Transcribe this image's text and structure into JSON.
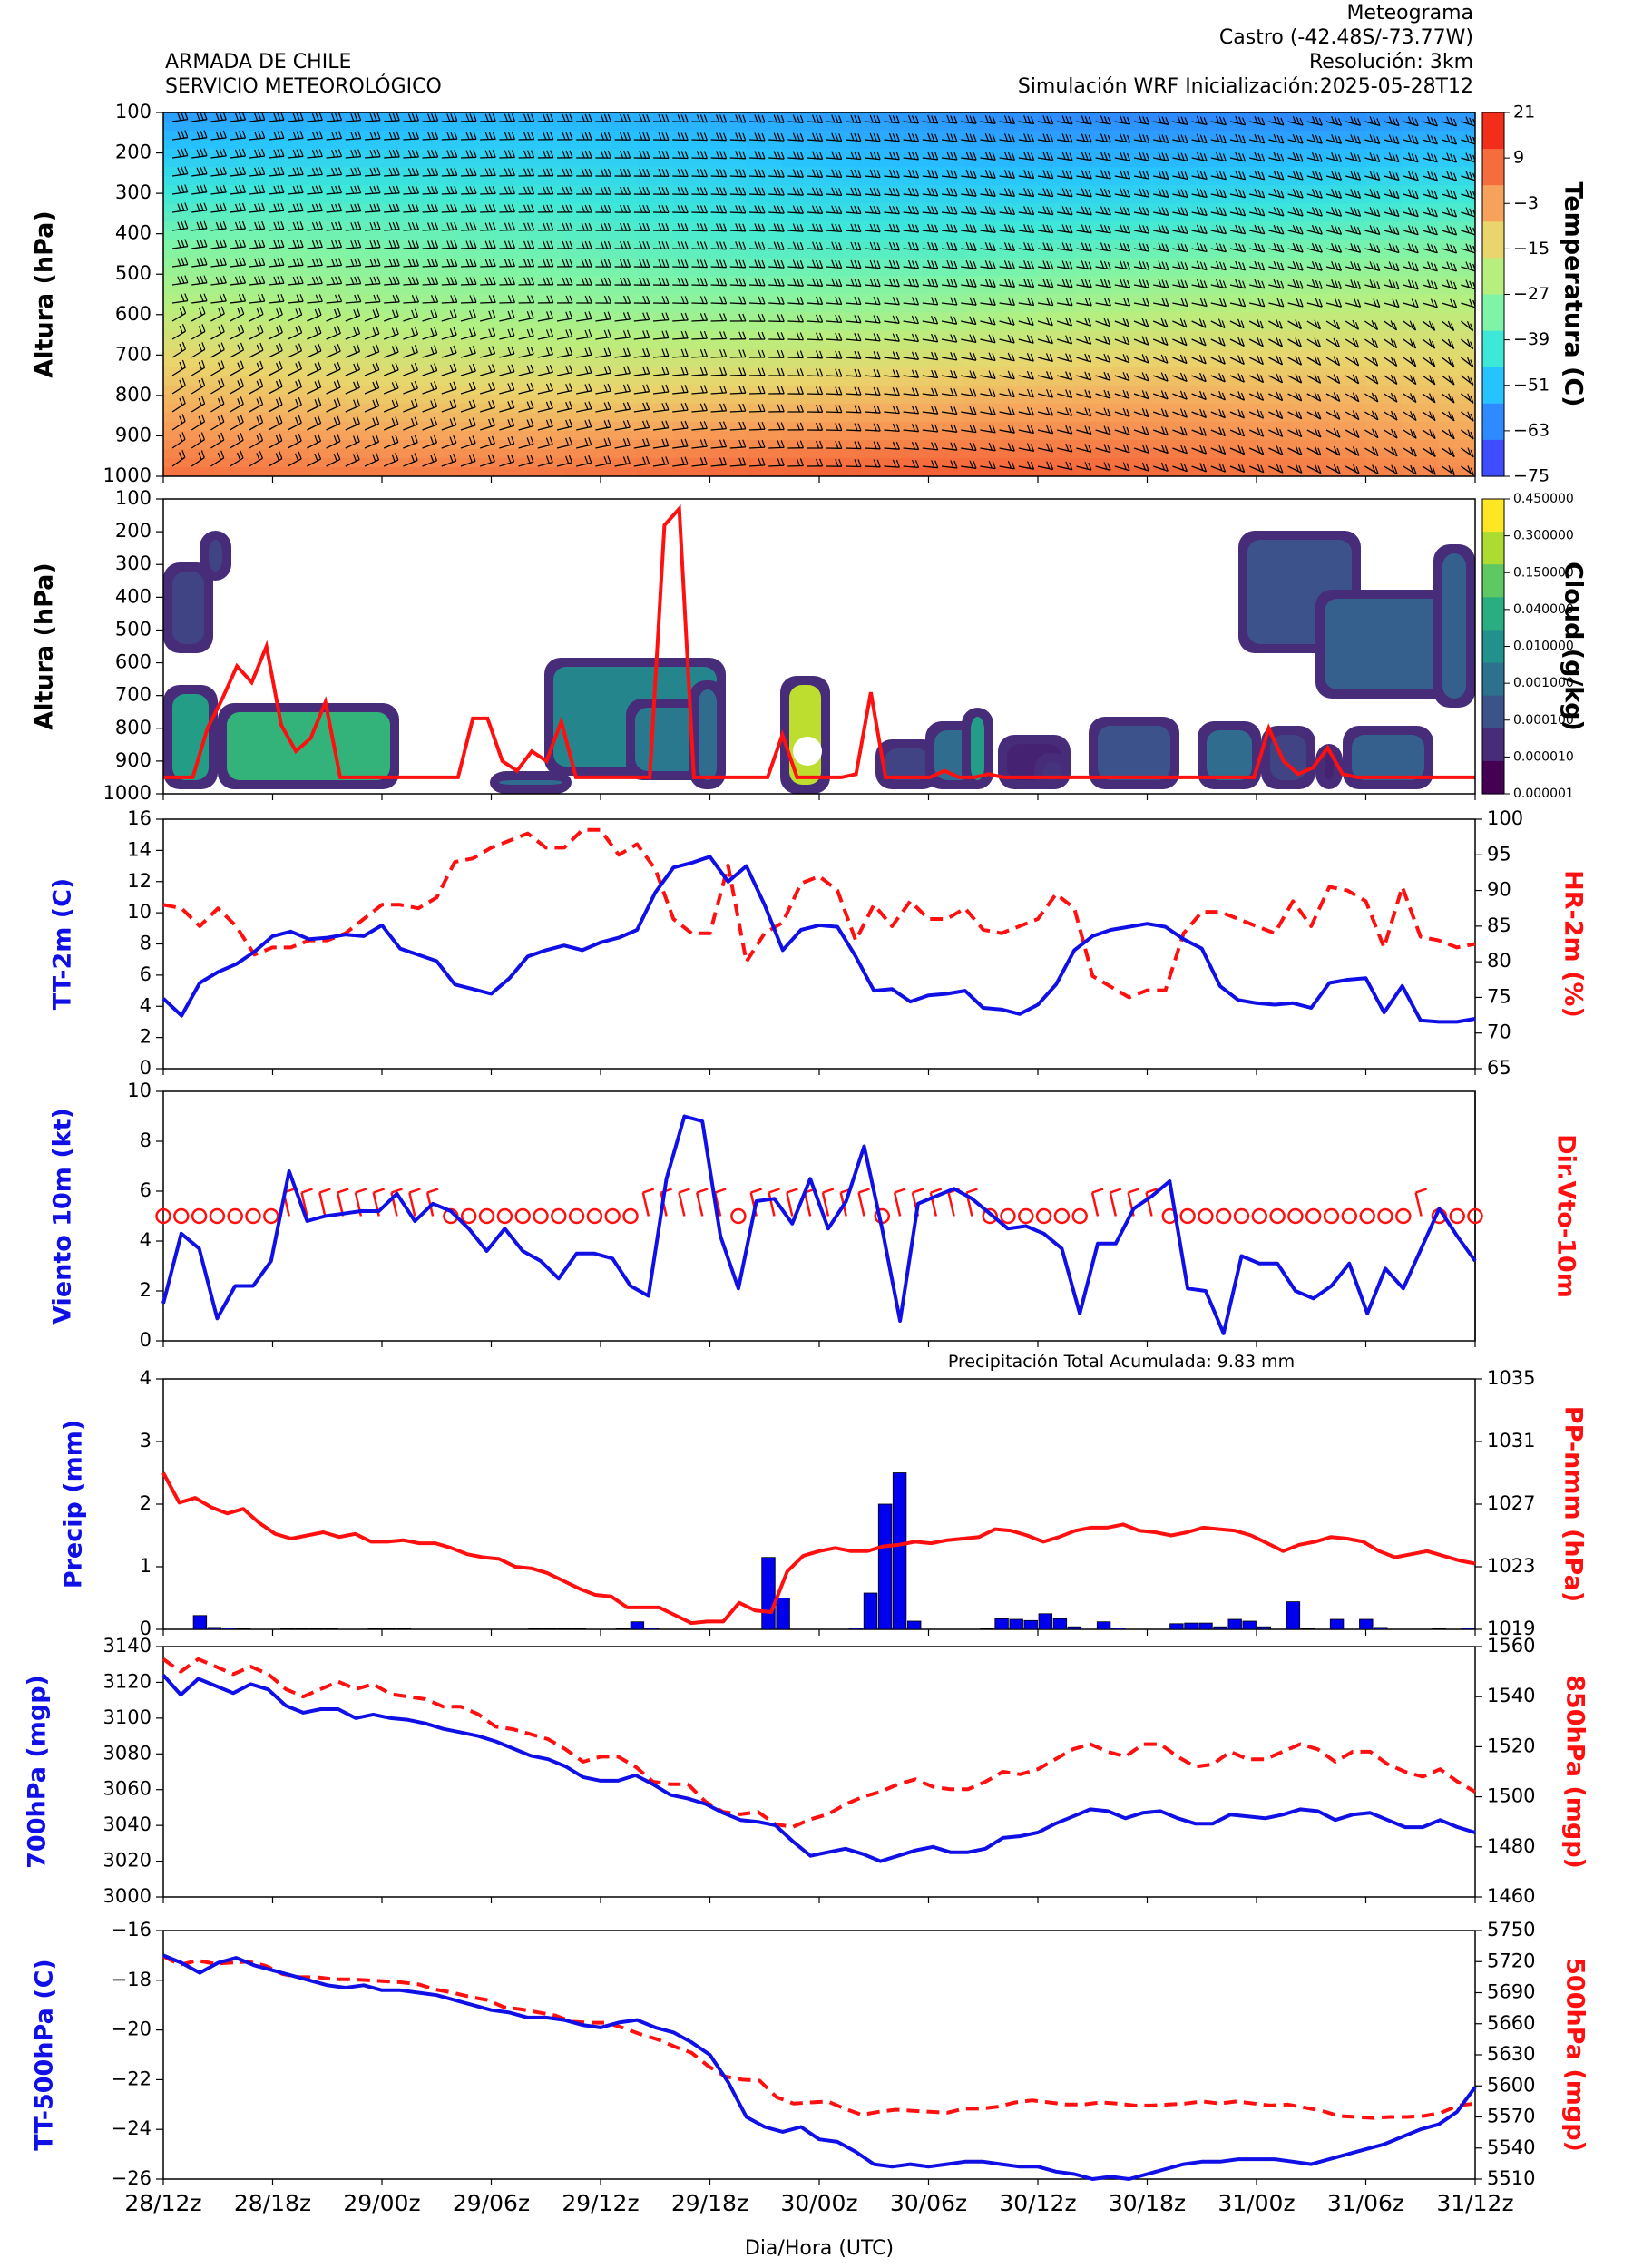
{
  "header": {
    "left_line1": "ARMADA DE CHILE",
    "left_line2": "SERVICIO METEOROLÓGICO",
    "right_line1": "Meteograma",
    "right_line2": "Castro  (-42.48S/-73.77W)",
    "right_line3": "Resolución: 3km",
    "right_line4": "Simulación WRF   Inicialización:2025-05-28T12"
  },
  "colors": {
    "blue": "#1010e6",
    "red": "#ff1010",
    "bar_blue": "#0000ee",
    "cloud_scale": [
      "#440154",
      "#472c7a",
      "#3b528b",
      "#2c728e",
      "#21918c",
      "#28ae80",
      "#5ec962",
      "#addc30",
      "#fde725"
    ],
    "temp_scale": [
      "#3d4dff",
      "#2e8bff",
      "#27c3ff",
      "#3ee8d8",
      "#7ff4a6",
      "#b7ef7e",
      "#e9d56c",
      "#f7a25a",
      "#f56d3d",
      "#f22e1a"
    ]
  },
  "chart_data": [
    {
      "type": "heatmap",
      "name": "vertical-temperature",
      "ylabel": "Altura (hPa)",
      "y_ticks": [
        "100",
        "200",
        "300",
        "400",
        "500",
        "600",
        "700",
        "800",
        "900",
        "1000"
      ],
      "colorbar_label": "Temperatura (C)",
      "colorbar_ticks": [
        "21",
        "9",
        "−3",
        "−15",
        "−27",
        "−39",
        "−51",
        "−63",
        "−75"
      ],
      "overlay": "wind barbs"
    },
    {
      "type": "heatmap",
      "name": "cloud-water",
      "ylabel": "Altura (hPa)",
      "y_ticks": [
        "100",
        "200",
        "300",
        "400",
        "500",
        "600",
        "700",
        "800",
        "900",
        "1000"
      ],
      "colorbar_label": "Cloud (g/kg)",
      "colorbar_ticks": [
        "0.450000",
        "0.300000",
        "0.150000",
        "0.040000",
        "0.010000",
        "0.001000",
        "0.000100",
        "0.000010",
        "0.000001"
      ],
      "line_pressure": [
        950,
        950,
        950,
        800,
        710,
        610,
        660,
        550,
        790,
        870,
        830,
        720,
        950,
        950,
        950,
        950,
        950,
        950,
        950,
        950,
        950,
        770,
        770,
        900,
        930,
        870,
        900,
        780,
        950,
        950,
        950,
        950,
        950,
        950,
        180,
        130,
        950,
        950,
        950,
        950,
        950,
        950,
        820,
        950,
        950,
        950,
        950,
        940,
        690,
        950,
        950,
        950,
        950,
        930,
        950,
        950,
        940,
        950,
        950,
        950,
        950,
        950,
        950,
        950,
        950,
        950,
        950,
        950,
        950,
        950,
        950,
        950,
        950,
        950,
        950,
        800,
        900,
        940,
        920,
        860,
        940,
        950,
        950,
        950,
        950,
        950,
        950,
        950,
        950,
        950
      ]
    },
    {
      "type": "line",
      "name": "tt-hr-2m",
      "ylabel": "TT-2m (C)",
      "y2label": "HR-2m (%)",
      "ylim": [
        0,
        16
      ],
      "y_ticks": [
        "0",
        "2",
        "4",
        "6",
        "8",
        "10",
        "12",
        "14",
        "16"
      ],
      "y2lim": [
        65,
        100
      ],
      "y2_ticks": [
        "65",
        "70",
        "75",
        "80",
        "85",
        "90",
        "95",
        "100"
      ],
      "series": [
        {
          "values": [
            4.5,
            3.4,
            5.5,
            6.2,
            6.7,
            7.5,
            8.5,
            8.8,
            8.3,
            8.4,
            8.6,
            8.5,
            9.2,
            7.7,
            7.3,
            6.9,
            5.4,
            5.1,
            4.8,
            5.8,
            7.2,
            7.6,
            7.9,
            7.6,
            8.1,
            8.4,
            8.9,
            11.3,
            12.9,
            13.2,
            13.6,
            12.0,
            13.0,
            10.5,
            7.6,
            8.9,
            9.2,
            9.1,
            7.2,
            5.0,
            5.1,
            4.3,
            4.7,
            4.8,
            5.0,
            3.9,
            3.8,
            3.5,
            4.1,
            5.4,
            7.6,
            8.5,
            8.9,
            9.1,
            9.3,
            9.1,
            8.3,
            7.7,
            5.3,
            4.4,
            4.2,
            4.1,
            4.2,
            3.9,
            5.5,
            5.7,
            5.8,
            3.6,
            5.3,
            3.1,
            3.0,
            3.0,
            3.2
          ]
        },
        {
          "values": [
            88,
            87.5,
            85,
            87.5,
            85,
            81,
            82,
            82,
            83,
            83,
            84,
            86,
            88,
            88,
            87.5,
            89,
            94,
            94.5,
            96,
            97,
            98,
            96,
            96,
            98.5,
            98.5,
            95,
            96.5,
            93,
            86,
            84,
            84,
            93.5,
            80,
            84,
            85.5,
            91,
            92,
            90,
            83,
            88,
            85,
            88.5,
            86,
            86,
            87.5,
            84.5,
            84,
            85,
            86,
            89.5,
            87.5,
            78,
            76.5,
            75,
            76,
            76,
            84,
            87,
            87,
            86,
            85,
            84,
            88.5,
            85,
            90.5,
            90,
            88.5,
            82,
            90.5,
            83.5,
            83,
            82,
            82.5
          ]
        }
      ]
    },
    {
      "type": "line",
      "name": "wind-10m",
      "ylabel": "Viento 10m (kt)",
      "y2label": "Dir.Vto-10m",
      "ylim": [
        0,
        10
      ],
      "y_ticks": [
        "0",
        "2",
        "4",
        "6",
        "8",
        "10"
      ],
      "series": [
        {
          "values": [
            1.5,
            4.3,
            3.7,
            0.9,
            2.2,
            2.2,
            3.2,
            6.8,
            4.8,
            5.0,
            5.1,
            5.2,
            5.2,
            5.9,
            4.8,
            5.5,
            5.2,
            4.5,
            3.6,
            4.5,
            3.6,
            3.2,
            2.5,
            3.5,
            3.5,
            3.3,
            2.2,
            1.8,
            6.5,
            9.0,
            8.8,
            4.2,
            2.1,
            5.6,
            5.7,
            4.7,
            6.5,
            4.5,
            5.6,
            7.8,
            4.5,
            0.8,
            5.5,
            5.8,
            6.1,
            5.7,
            5.1,
            4.5,
            4.6,
            4.3,
            3.7,
            1.1,
            3.9,
            3.9,
            5.3,
            5.8,
            6.4,
            2.1,
            2.0,
            0.3,
            3.4,
            3.1,
            3.1,
            2.0,
            1.7,
            2.2,
            3.1,
            1.1,
            2.9,
            2.1,
            3.7,
            5.3,
            4.2,
            3.2
          ]
        }
      ]
    },
    {
      "type": "bar",
      "name": "precip-pressure",
      "title": "Precipitación Total Acumulada: 9.83 mm",
      "ylabel": "Precip (mm)",
      "y2label": "PP-nmm (hPa)",
      "ylim": [
        0,
        4
      ],
      "y_ticks": [
        "0",
        "1",
        "2",
        "3",
        "4"
      ],
      "y2lim": [
        1019,
        1035
      ],
      "y2_ticks": [
        "1019",
        "1023",
        "1027",
        "1031",
        "1035"
      ],
      "series": [
        {
          "name": "precip",
          "values": [
            0,
            0,
            0.22,
            0.03,
            0.02,
            0.01,
            0,
            0,
            0.01,
            0.01,
            0.01,
            0.01,
            0,
            0,
            0.01,
            0.01,
            0.01,
            0,
            0,
            0,
            0,
            0,
            0,
            0,
            0,
            0.01,
            0.01,
            0.01,
            0.01,
            0,
            0,
            0.01,
            0.12,
            0.02,
            0,
            0,
            0,
            0,
            0,
            0,
            0,
            1.15,
            0.5,
            0,
            0,
            0,
            0,
            0.02,
            0.58,
            2.0,
            2.5,
            0.13,
            0,
            0,
            0,
            0,
            0.01,
            0.17,
            0.16,
            0.14,
            0.25,
            0.17,
            0.04,
            0,
            0.12,
            0.02,
            0,
            0,
            0,
            0.09,
            0.1,
            0.1,
            0.04,
            0.16,
            0.13,
            0.04,
            0,
            0.44,
            0.01,
            0,
            0.16,
            0,
            0.16,
            0.03,
            0,
            0,
            0,
            0.01,
            0,
            0.02
          ]
        },
        {
          "name": "pressure",
          "values": [
            1029,
            1027.1,
            1027.4,
            1026.8,
            1026.4,
            1026.7,
            1025.8,
            1025.1,
            1024.8,
            1025.0,
            1025.2,
            1024.9,
            1025.1,
            1024.6,
            1024.6,
            1024.7,
            1024.5,
            1024.5,
            1024.2,
            1023.8,
            1023.6,
            1023.5,
            1023.0,
            1022.9,
            1022.6,
            1022.1,
            1021.6,
            1021.2,
            1021.1,
            1020.4,
            1020.4,
            1020.4,
            1019.9,
            1019.4,
            1019.5,
            1019.5,
            1020.7,
            1020.2,
            1020.1,
            1022.7,
            1023.7,
            1024.0,
            1024.2,
            1024.0,
            1024.0,
            1024.3,
            1024.4,
            1024.6,
            1024.5,
            1024.7,
            1024.8,
            1024.9,
            1025.4,
            1025.3,
            1025.0,
            1024.6,
            1024.9,
            1025.3,
            1025.5,
            1025.5,
            1025.7,
            1025.3,
            1025.2,
            1025.0,
            1025.2,
            1025.5,
            1025.4,
            1025.3,
            1025.0,
            1024.5,
            1024.0,
            1024.4,
            1024.6,
            1024.9,
            1024.8,
            1024.6,
            1024.0,
            1023.6,
            1023.8,
            1024.0,
            1023.7,
            1023.4,
            1023.2
          ]
        }
      ]
    },
    {
      "type": "line",
      "name": "geopotential-700-850",
      "ylabel": "700hPa (mgp)",
      "y2label": "850hPa (mgp)",
      "ylim": [
        3000,
        3140
      ],
      "y_ticks": [
        "3000",
        "3020",
        "3040",
        "3060",
        "3080",
        "3100",
        "3120",
        "3140"
      ],
      "y2lim": [
        1460,
        1560
      ],
      "y2_ticks": [
        "1460",
        "1480",
        "1500",
        "1520",
        "1540",
        "1560"
      ],
      "series": [
        {
          "values": [
            3124,
            3113,
            3122,
            3118,
            3114,
            3119,
            3116,
            3107,
            3103,
            3105,
            3105,
            3100,
            3102,
            3100,
            3099,
            3097,
            3094,
            3092,
            3090,
            3087,
            3083,
            3079,
            3077,
            3073,
            3067,
            3065,
            3065,
            3068,
            3063,
            3057,
            3055,
            3052,
            3047,
            3043,
            3042,
            3040,
            3031,
            3023,
            3025,
            3027,
            3024,
            3020,
            3023,
            3026,
            3028,
            3025,
            3025,
            3027,
            3033,
            3034,
            3036,
            3041,
            3045,
            3049,
            3048,
            3044,
            3047,
            3048,
            3044,
            3041,
            3041,
            3046,
            3045,
            3044,
            3046,
            3049,
            3048,
            3043,
            3046,
            3047,
            3043,
            3039,
            3039,
            3043,
            3039,
            3036
          ]
        },
        {
          "values": [
            1555,
            1550,
            1555,
            1552,
            1549,
            1552,
            1549,
            1543,
            1540,
            1543,
            1546,
            1543,
            1545,
            1541,
            1540,
            1539,
            1536,
            1536,
            1533,
            1528,
            1527,
            1525,
            1523,
            1519,
            1514,
            1516,
            1516,
            1512,
            1506,
            1505,
            1505,
            1498,
            1494,
            1493,
            1494,
            1489,
            1488,
            1491,
            1493,
            1497,
            1500,
            1502,
            1505,
            1507,
            1504,
            1503,
            1503,
            1506,
            1510,
            1509,
            1511,
            1515,
            1519,
            1521,
            1518,
            1516,
            1521,
            1521,
            1516,
            1512,
            1513,
            1518,
            1515,
            1515,
            1518,
            1521,
            1519,
            1514,
            1518,
            1518,
            1513,
            1510,
            1508,
            1511,
            1506,
            1502
          ]
        }
      ]
    },
    {
      "type": "line",
      "name": "tt-geopotential-500",
      "ylabel": "TT-500hPa (C)",
      "y2label": "500hPa (mgp)",
      "xlabel": "Dia/Hora (UTC)",
      "x_ticks": [
        "28/12z",
        "28/18z",
        "29/00z",
        "29/06z",
        "29/12z",
        "29/18z",
        "30/00z",
        "30/06z",
        "30/12z",
        "30/18z",
        "31/00z",
        "31/06z",
        "31/12z"
      ],
      "ylim": [
        -26,
        -16
      ],
      "y_ticks": [
        "−26",
        "−24",
        "−22",
        "−20",
        "−18",
        "−16"
      ],
      "y2lim": [
        5510,
        5750
      ],
      "y2_ticks": [
        "5510",
        "5540",
        "5570",
        "5600",
        "5630",
        "5660",
        "5690",
        "5720",
        "5750"
      ],
      "series": [
        {
          "values": [
            -17.0,
            -17.3,
            -17.7,
            -17.3,
            -17.1,
            -17.4,
            -17.6,
            -17.8,
            -18.0,
            -18.2,
            -18.3,
            -18.2,
            -18.4,
            -18.4,
            -18.5,
            -18.6,
            -18.8,
            -19.0,
            -19.2,
            -19.3,
            -19.5,
            -19.5,
            -19.6,
            -19.8,
            -19.9,
            -19.7,
            -19.6,
            -19.9,
            -20.1,
            -20.5,
            -21.0,
            -22.1,
            -23.5,
            -23.9,
            -24.1,
            -23.9,
            -24.4,
            -24.5,
            -24.9,
            -25.4,
            -25.5,
            -25.4,
            -25.5,
            -25.4,
            -25.3,
            -25.3,
            -25.4,
            -25.5,
            -25.5,
            -25.7,
            -25.8,
            -26.0,
            -25.9,
            -26.0,
            -25.8,
            -25.6,
            -25.4,
            -25.3,
            -25.3,
            -25.2,
            -25.2,
            -25.2,
            -25.3,
            -25.4,
            -25.2,
            -25.0,
            -24.8,
            -24.6,
            -24.3,
            -24.0,
            -23.8,
            -23.3,
            -22.3
          ]
        },
        {
          "values": [
            5725,
            5717,
            5721,
            5718,
            5719,
            5720,
            5716,
            5708,
            5705,
            5705,
            5703,
            5703,
            5702,
            5701,
            5700,
            5698,
            5693,
            5690,
            5686,
            5683,
            5676,
            5674,
            5671,
            5668,
            5662,
            5661,
            5661,
            5656,
            5650,
            5645,
            5638,
            5632,
            5619,
            5609,
            5606,
            5605,
            5589,
            5583,
            5584,
            5585,
            5578,
            5572,
            5575,
            5577,
            5576,
            5575,
            5574,
            5578,
            5578,
            5580,
            5584,
            5586,
            5584,
            5582,
            5582,
            5584,
            5583,
            5581,
            5581,
            5582,
            5583,
            5585,
            5583,
            5585,
            5583,
            5581,
            5582,
            5579,
            5576,
            5571,
            5570,
            5569,
            5570,
            5570,
            5571,
            5574,
            5581,
            5583
          ]
        }
      ]
    }
  ]
}
